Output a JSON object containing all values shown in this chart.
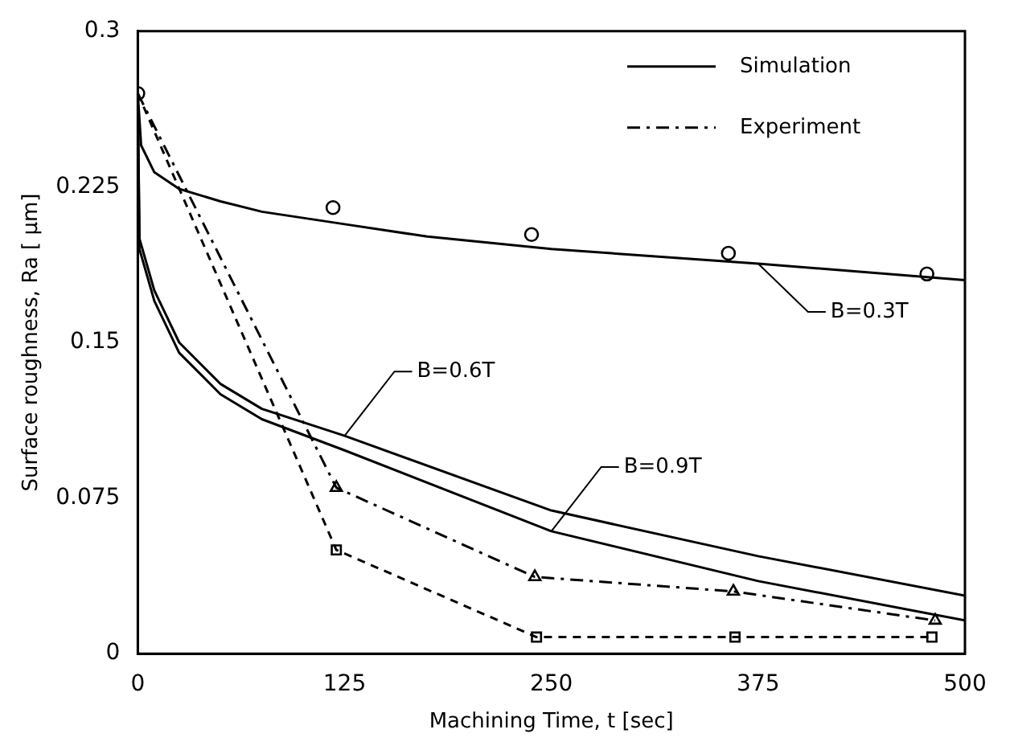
{
  "chart_data": {
    "type": "line",
    "xlabel": "Machining Time, t [sec]",
    "ylabel": "Surface roughness, Ra [ μm]",
    "xlim": [
      0,
      500
    ],
    "xticks": [
      0,
      125,
      250,
      375,
      500
    ],
    "ylim": [
      0,
      0.3
    ],
    "yticks": [
      0,
      0.075,
      0.15,
      0.225,
      0.3
    ],
    "legend": "top right",
    "grid": false,
    "series": [
      {
        "name": "Simulation",
        "type": "line",
        "color": "#000000",
        "line_style": "solid",
        "marker": "none",
        "x": [
          0,
          2,
          10,
          25,
          50,
          75,
          125,
          175,
          250,
          375,
          500
        ],
        "values": [
          0.27,
          0.245,
          0.232,
          0.224,
          0.218,
          0.213,
          0.207,
          0.201,
          0.195,
          0.188,
          0.18
        ]
      },
      {
        "type": "line",
        "color": "#000000",
        "line_style": "solid",
        "marker": "none",
        "x": [
          0,
          1,
          10,
          25,
          50,
          75,
          125,
          250,
          375,
          500
        ],
        "values": [
          0.27,
          0.2,
          0.175,
          0.15,
          0.13,
          0.118,
          0.105,
          0.069,
          0.047,
          0.028
        ]
      },
      {
        "type": "line",
        "color": "#000000",
        "line_style": "solid",
        "marker": "none",
        "x": [
          0,
          1,
          10,
          25,
          50,
          75,
          125,
          250,
          375,
          500
        ],
        "values": [
          0.27,
          0.195,
          0.17,
          0.145,
          0.125,
          0.113,
          0.098,
          0.059,
          0.035,
          0.016
        ]
      },
      {
        "type": "scatter",
        "color": "#000000",
        "marker": "circle",
        "x": [
          0,
          118,
          238,
          357,
          477
        ],
        "values": [
          0.27,
          0.215,
          0.202,
          0.193,
          0.183
        ]
      },
      {
        "name": "Experiment",
        "type": "line",
        "color": "#000000",
        "line_style": "dashed",
        "marker": "triangle",
        "x": [
          0,
          120,
          240,
          360,
          482
        ],
        "values": [
          0.27,
          0.08,
          0.037,
          0.03,
          0.016
        ]
      },
      {
        "type": "line",
        "color": "#000000",
        "line_style": "dotted",
        "marker": "square",
        "x": [
          0,
          120,
          241,
          361,
          480
        ],
        "values": [
          0.27,
          0.05,
          0.008,
          0.008,
          0.008
        ]
      }
    ],
    "annotations": [
      {
        "text": "B=0.3T",
        "x": 375,
        "y": 0.188
      },
      {
        "text": "B=0.6T",
        "x": 125,
        "y": 0.105
      },
      {
        "text": "B=0.9T",
        "x": 250,
        "y": 0.059
      }
    ]
  }
}
